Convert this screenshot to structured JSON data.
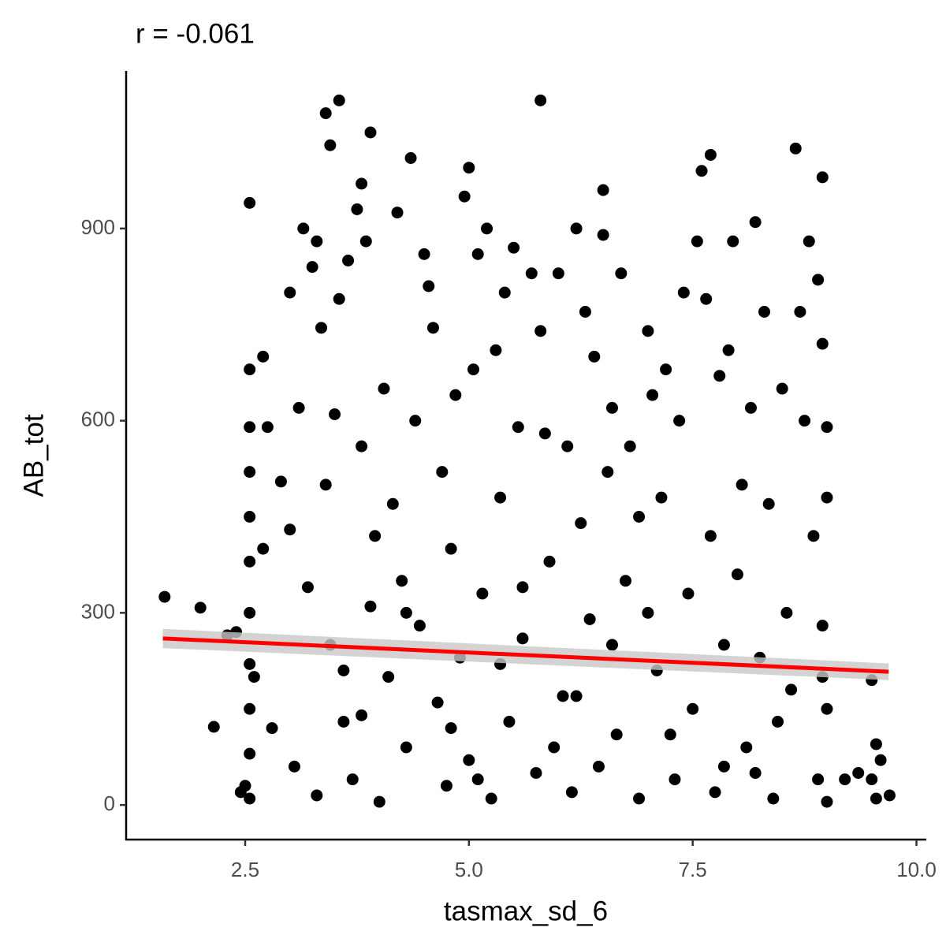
{
  "chart_data": {
    "type": "scatter",
    "title": "r = -0.061",
    "x_label": "tasmax_sd_6",
    "y_label": "AB_tot",
    "color": "#000000",
    "xlim": [
      1.17,
      10.11
    ],
    "ylim": [
      -54,
      1146
    ],
    "xticks": [
      {
        "value": 2.5,
        "label": "2.5"
      },
      {
        "value": 5.0,
        "label": "5.0"
      },
      {
        "value": 7.5,
        "label": "7.5"
      },
      {
        "value": 10.0,
        "label": "10.0"
      }
    ],
    "yticks": [
      0,
      300,
      600,
      900
    ],
    "x": [
      1.6,
      2.0,
      2.15,
      2.55,
      3.55,
      3.4,
      5.8,
      3.45,
      3.9,
      4.35,
      5.0,
      8.65,
      7.7,
      8.95,
      6.5,
      3.8,
      2.7,
      9.5,
      9.55,
      9.7,
      9.35,
      9.2,
      9.5,
      9.6,
      9.55,
      2.4,
      2.3,
      2.5,
      2.55,
      2.55,
      2.55,
      2.55,
      2.55,
      2.55,
      2.55,
      2.55,
      2.55,
      2.55,
      2.6,
      2.7,
      2.75,
      2.8,
      2.9,
      3.0,
      3.0,
      3.1,
      3.15,
      3.2,
      3.25,
      3.3,
      3.3,
      3.35,
      3.4,
      3.45,
      3.5,
      3.55,
      3.6,
      3.65,
      3.7,
      3.75,
      3.8,
      3.85,
      3.9,
      3.95,
      4.0,
      4.05,
      4.1,
      4.2,
      4.25,
      4.3,
      4.4,
      4.45,
      4.5,
      4.55,
      4.6,
      4.65,
      4.7,
      4.75,
      4.8,
      4.85,
      4.9,
      4.95,
      5.0,
      5.05,
      5.1,
      5.15,
      5.2,
      5.25,
      5.3,
      5.35,
      5.4,
      5.45,
      5.5,
      5.55,
      5.6,
      5.7,
      5.75,
      5.8,
      5.85,
      5.9,
      6.0,
      6.05,
      6.1,
      6.15,
      6.2,
      6.25,
      6.3,
      6.35,
      6.4,
      6.45,
      6.5,
      6.55,
      6.6,
      6.65,
      6.7,
      6.75,
      6.8,
      6.9,
      7.0,
      7.05,
      7.1,
      7.15,
      7.2,
      7.3,
      7.35,
      7.4,
      7.45,
      7.5,
      7.55,
      7.6,
      7.65,
      7.7,
      7.75,
      7.8,
      7.85,
      7.9,
      7.95,
      8.0,
      8.05,
      8.1,
      8.15,
      8.2,
      8.25,
      8.3,
      8.35,
      8.4,
      8.5,
      8.55,
      8.6,
      8.7,
      8.75,
      8.8,
      8.85,
      8.9,
      8.9,
      8.95,
      8.95,
      9.0,
      9.0,
      9.0,
      9.0,
      2.45,
      3.05,
      3.6,
      4.15,
      4.8,
      5.35,
      5.95,
      6.6,
      7.25,
      7.85,
      8.45,
      8.95,
      6.2,
      5.1,
      4.3,
      3.8,
      7.0,
      8.2,
      6.9,
      5.6
    ],
    "values": [
      325,
      308,
      122,
      940,
      1100,
      1080,
      1100,
      1030,
      1050,
      1010,
      995,
      1025,
      1015,
      980,
      960,
      970,
      700,
      195,
      95,
      15,
      50,
      40,
      40,
      70,
      10,
      270,
      265,
      30,
      680,
      590,
      520,
      450,
      380,
      300,
      220,
      150,
      80,
      10,
      200,
      400,
      590,
      120,
      505,
      800,
      430,
      620,
      900,
      340,
      840,
      880,
      15,
      745,
      500,
      250,
      610,
      790,
      130,
      850,
      40,
      930,
      560,
      880,
      310,
      420,
      5,
      650,
      200,
      925,
      350,
      90,
      600,
      280,
      860,
      810,
      745,
      160,
      520,
      30,
      400,
      640,
      230,
      950,
      70,
      680,
      860,
      330,
      900,
      10,
      710,
      480,
      800,
      130,
      870,
      590,
      260,
      830,
      50,
      740,
      580,
      380,
      830,
      170,
      560,
      20,
      900,
      440,
      770,
      290,
      700,
      60,
      890,
      520,
      620,
      110,
      830,
      350,
      560,
      10,
      740,
      640,
      210,
      480,
      680,
      40,
      600,
      800,
      330,
      150,
      880,
      990,
      790,
      420,
      20,
      670,
      250,
      710,
      880,
      360,
      500,
      90,
      620,
      910,
      230,
      770,
      470,
      10,
      650,
      300,
      180,
      770,
      600,
      880,
      420,
      820,
      40,
      720,
      280,
      590,
      150,
      5,
      480,
      20,
      60,
      210,
      470,
      120,
      220,
      90,
      250,
      110,
      60,
      130,
      200,
      170,
      40,
      300,
      140,
      300,
      50,
      450,
      340
    ],
    "trend": {
      "color": "#ff0000",
      "band_color": "#c8c8c8",
      "x": [
        1.58,
        9.69
      ],
      "values": [
        260,
        208
      ],
      "band_lower": [
        245,
        195
      ],
      "band_upper": [
        275,
        221
      ]
    }
  }
}
